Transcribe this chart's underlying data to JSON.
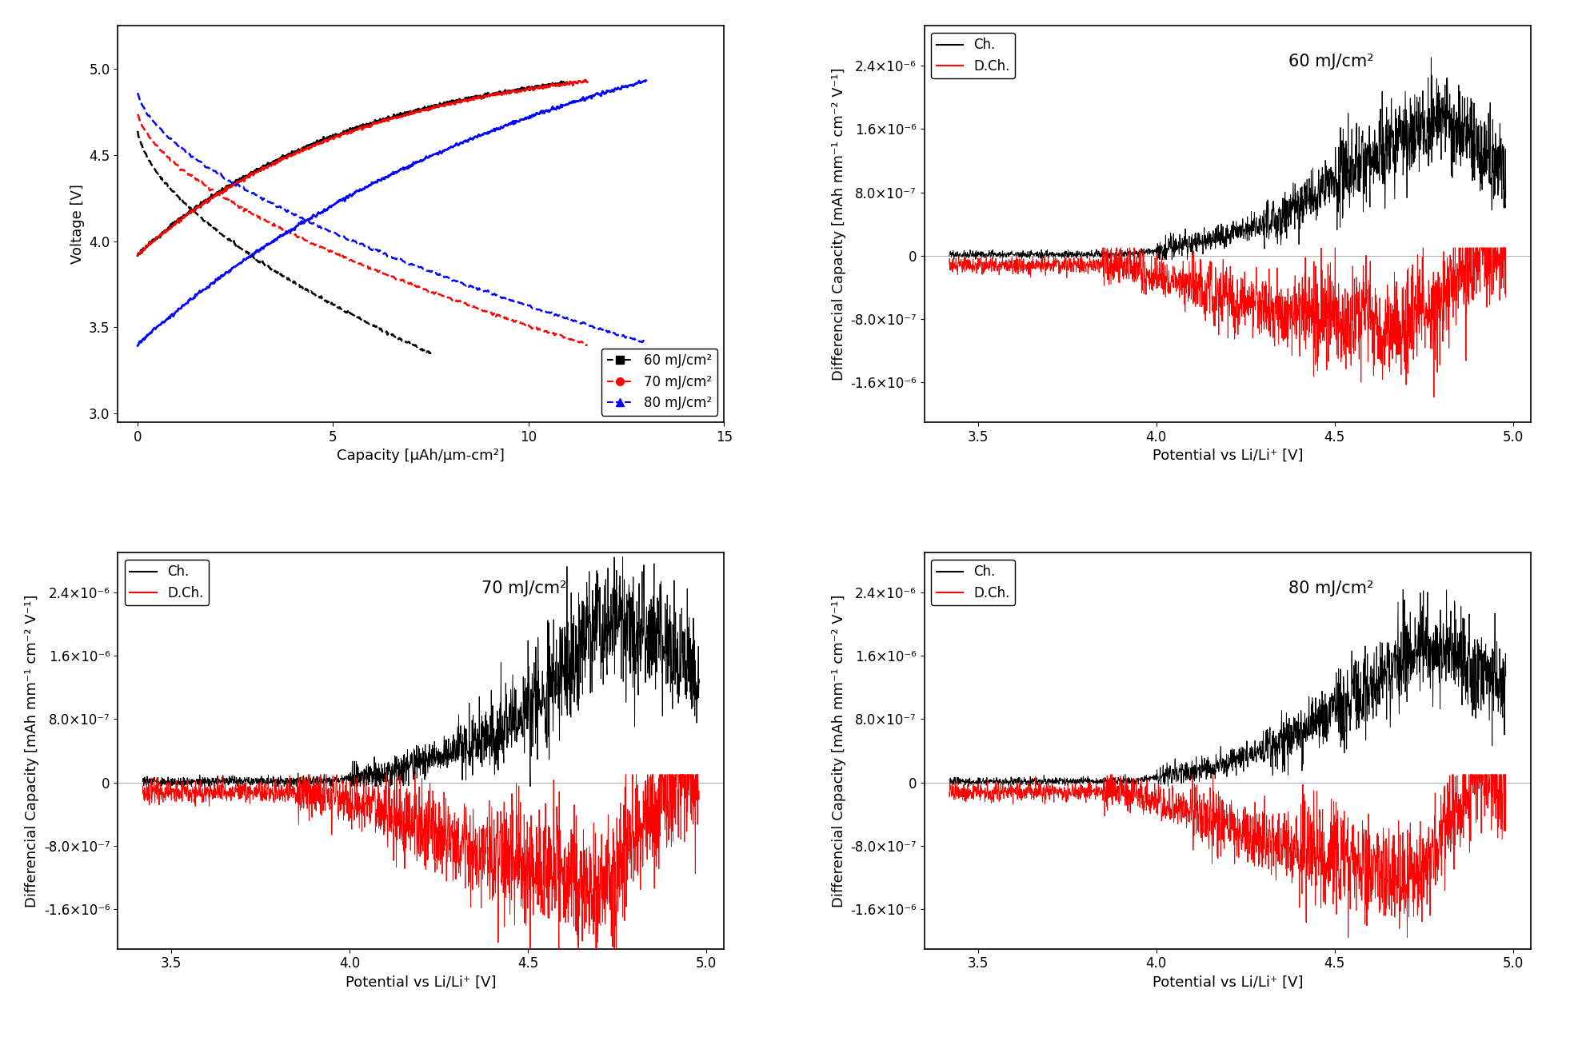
{
  "fig_width": 19.63,
  "fig_height": 12.97,
  "background_color": "#ffffff",
  "ax1": {
    "xlim": [
      -0.5,
      15
    ],
    "ylim": [
      2.95,
      5.25
    ],
    "xlabel": "Capacity [μAh/μm-cm²]",
    "ylabel": "Voltage [V]",
    "xticks": [
      0,
      5,
      10,
      15
    ],
    "yticks": [
      3.0,
      3.5,
      4.0,
      4.5,
      5.0
    ],
    "legend_labels": [
      "60 mJ/cm²",
      "70 mJ/cm²",
      "80 mJ/cm²"
    ],
    "legend_colors": [
      "black",
      "red",
      "blue"
    ],
    "legend_markers": [
      "s",
      "o",
      "^"
    ]
  },
  "ax2": {
    "title": "60 mJ/cm²",
    "xlim": [
      3.35,
      5.05
    ],
    "ylim": [
      -2.1e-06,
      2.9e-06
    ],
    "xlabel": "Potential vs Li/Li⁺ [V]",
    "ylabel": "Differencial Capacity [mAh mm⁻¹ cm⁻² V⁻¹]",
    "xticks": [
      3.5,
      4.0,
      4.5,
      5.0
    ],
    "ytick_vals": [
      -1.6e-06,
      -8e-07,
      0.0,
      8e-07,
      1.6e-06,
      2.4e-06
    ],
    "ytick_labels": [
      "-1.6×10⁻⁶",
      "-8.0×10⁻⁷",
      "0",
      "8.0×10⁻⁷",
      "1.6×10⁻⁶",
      "2.4×10⁻⁶"
    ]
  },
  "ax3": {
    "title": "70 mJ/cm²",
    "xlim": [
      3.35,
      5.05
    ],
    "ylim": [
      -2.1e-06,
      2.9e-06
    ],
    "xlabel": "Potential vs Li/Li⁺ [V]",
    "ylabel": "Differencial Capacity [mAh mm⁻¹ cm⁻² V⁻¹]",
    "xticks": [
      3.5,
      4.0,
      4.5,
      5.0
    ],
    "ytick_vals": [
      -1.6e-06,
      -8e-07,
      0.0,
      8e-07,
      1.6e-06,
      2.4e-06
    ],
    "ytick_labels": [
      "-1.6×10⁻⁶",
      "-8.0×10⁻⁷",
      "0",
      "8.0×10⁻⁷",
      "1.6×10⁻⁶",
      "2.4×10⁻⁶"
    ]
  },
  "ax4": {
    "title": "80 mJ/cm²",
    "xlim": [
      3.35,
      5.05
    ],
    "ylim": [
      -2.1e-06,
      2.9e-06
    ],
    "xlabel": "Potential vs Li/Li⁺ [V]",
    "ylabel": "Differencial Capacity [mAh mm⁻¹ cm⁻² V⁻¹]",
    "xticks": [
      3.5,
      4.0,
      4.5,
      5.0
    ],
    "ytick_vals": [
      -1.6e-06,
      -8e-07,
      0.0,
      8e-07,
      1.6e-06,
      2.4e-06
    ],
    "ytick_labels": [
      "-1.6×10⁻⁶",
      "-8.0×10⁻⁷",
      "0",
      "8.0×10⁻⁷",
      "1.6×10⁻⁶",
      "2.4×10⁻⁶"
    ]
  },
  "font_size_label": 13,
  "font_size_tick": 12,
  "font_size_legend": 12,
  "font_size_title": 15
}
